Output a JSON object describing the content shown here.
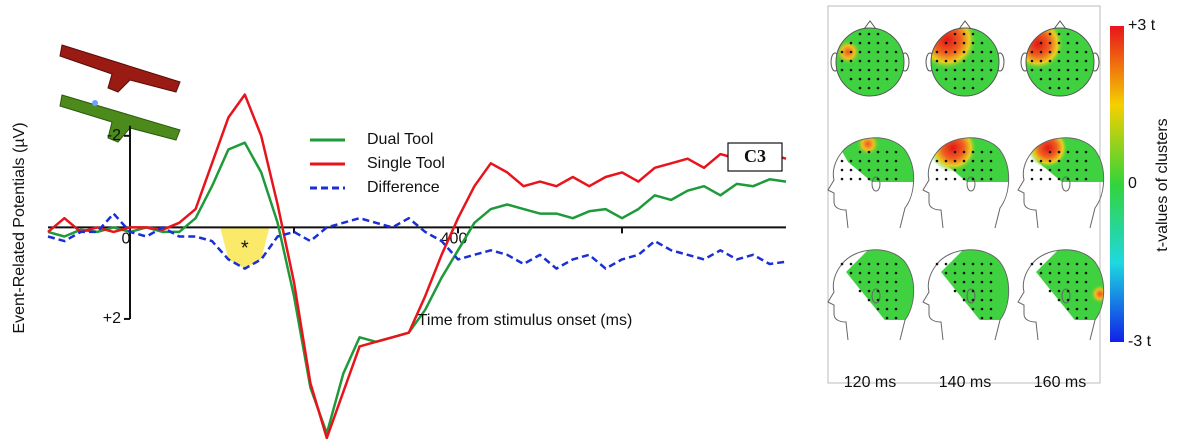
{
  "chart_data": {
    "type": "line",
    "x_label": "Time from stimulus onset (ms)",
    "y_label": "Event-Related Potentials (µV)",
    "annotation": "C3",
    "y_inverted": true,
    "x": [
      -100,
      -80,
      -60,
      -40,
      -20,
      0,
      20,
      40,
      60,
      80,
      100,
      120,
      140,
      160,
      180,
      200,
      220,
      240,
      260,
      280,
      300,
      320,
      340,
      360,
      380,
      400,
      420,
      440,
      460,
      480,
      500,
      520,
      540,
      560,
      580,
      600,
      620,
      640,
      660,
      680,
      700,
      720,
      740,
      760,
      780,
      800
    ],
    "series": [
      {
        "name": "Dual Tool",
        "color": "#1f9a3a",
        "dash": false,
        "values": [
          0.1,
          0.2,
          0.05,
          0.1,
          0.0,
          0.1,
          0.0,
          0.1,
          0.1,
          -0.2,
          -0.9,
          -1.7,
          -1.85,
          -1.2,
          -0.1,
          1.5,
          3.5,
          4.5,
          3.2,
          2.4,
          2.5,
          2.4,
          2.3,
          1.8,
          1.1,
          0.5,
          -0.1,
          -0.4,
          -0.5,
          -0.4,
          -0.3,
          -0.3,
          -0.2,
          -0.35,
          -0.4,
          -0.2,
          -0.4,
          -0.7,
          -0.6,
          -0.8,
          -0.9,
          -0.7,
          -0.95,
          -0.9,
          -1.05,
          -1.0
        ]
      },
      {
        "name": "Single Tool",
        "color": "#e8141c",
        "dash": false,
        "values": [
          0.1,
          -0.2,
          0.1,
          0.0,
          0.1,
          0.0,
          0.0,
          0.05,
          -0.1,
          -0.4,
          -1.4,
          -2.4,
          -2.9,
          -2.0,
          -0.5,
          1.2,
          3.4,
          4.6,
          3.6,
          2.6,
          2.5,
          2.4,
          2.3,
          1.5,
          0.6,
          -0.2,
          -0.9,
          -1.4,
          -1.2,
          -0.9,
          -1.0,
          -0.9,
          -1.1,
          -0.9,
          -1.1,
          -1.2,
          -1.0,
          -1.3,
          -1.4,
          -1.5,
          -1.3,
          -1.6,
          -1.5,
          -1.7,
          -1.6,
          -1.5
        ]
      },
      {
        "name": "Difference",
        "color": "#1a2fd6",
        "dash": true,
        "values": [
          0.2,
          0.3,
          0.1,
          0.1,
          -0.3,
          0.1,
          0.2,
          0.0,
          0.2,
          0.2,
          0.3,
          0.7,
          0.9,
          0.7,
          0.2,
          0.1,
          0.3,
          0.0,
          -0.1,
          -0.2,
          -0.1,
          0.0,
          -0.2,
          0.1,
          0.3,
          0.7,
          0.6,
          0.5,
          0.6,
          0.8,
          0.6,
          0.9,
          0.7,
          0.6,
          0.9,
          0.7,
          0.6,
          0.3,
          0.5,
          0.6,
          0.7,
          0.5,
          0.7,
          0.6,
          0.8,
          0.75
        ]
      }
    ],
    "highlight": {
      "xlim": [
        110,
        170
      ],
      "color": "#fbe96a",
      "label": "*"
    },
    "xlim": [
      -100,
      800
    ],
    "ylim": [
      -3,
      4.6
    ],
    "xticks": [
      0,
      {
        "value": 200,
        "label": null
      },
      400,
      {
        "value": 600,
        "label": null
      }
    ],
    "yticks": [
      -2,
      {
        "value": 2,
        "label": "+2"
      }
    ]
  },
  "topomaps": {
    "times": [
      "120 ms",
      "140 ms",
      "160 ms"
    ],
    "colorbar": {
      "title": "t-values of clusters",
      "lim": [
        -3,
        3
      ],
      "ticks": [
        {
          "value": 3,
          "label": "+3 t"
        },
        0,
        {
          "value": -3,
          "label": "-3 t"
        }
      ]
    }
  }
}
